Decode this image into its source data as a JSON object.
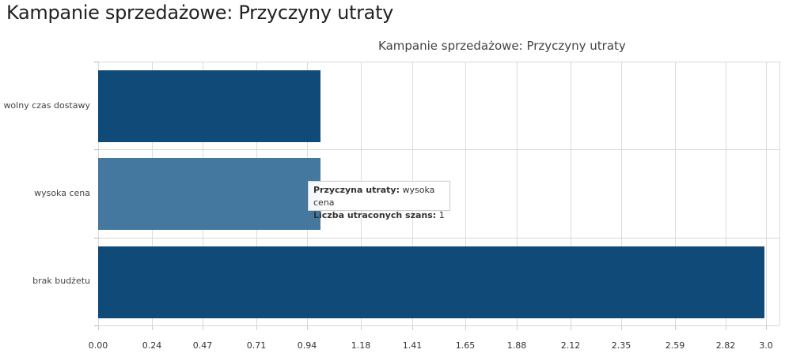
{
  "page": {
    "title": "Kampanie sprzedażowe: Przyczyny utraty"
  },
  "chart_data": {
    "type": "bar",
    "orientation": "horizontal",
    "title": "Kampanie sprzedażowe: Przyczyny utraty",
    "xlabel": "",
    "ylabel": "",
    "categories": [
      "wolny czas dostawy",
      "wysoka cena",
      "brak budżetu"
    ],
    "values": [
      1,
      1,
      3
    ],
    "series": [
      {
        "name": "Liczba utraconych szans",
        "values": [
          1,
          1,
          3
        ]
      }
    ],
    "xlim": [
      0,
      3.06
    ],
    "x_ticks": [
      "0.00",
      "0.24",
      "0.47",
      "0.71",
      "0.94",
      "1.18",
      "1.41",
      "1.65",
      "1.88",
      "2.12",
      "2.35",
      "2.59",
      "2.82",
      "3.0"
    ],
    "grid": true,
    "legend": "none",
    "colors": {
      "bar": "#0f4a78",
      "bar_highlighted": "#44789f",
      "grid": "#d8d8d8"
    },
    "highlighted_index": 1
  },
  "tooltip": {
    "label1": "Przyczyna utraty:",
    "value1": "wysoka cena",
    "label2": "Liczba utraconych szans:",
    "value2": "1"
  }
}
